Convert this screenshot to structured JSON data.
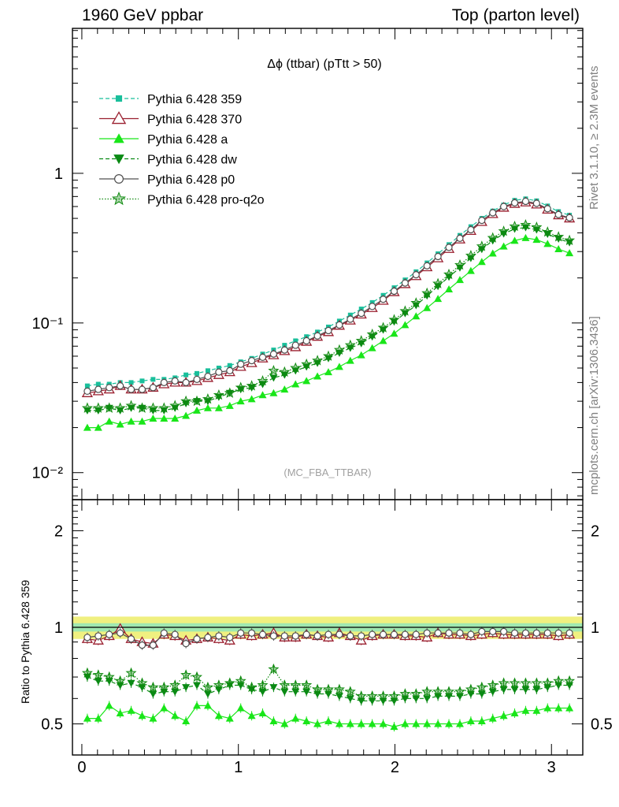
{
  "header": {
    "left": "1960 GeV ppbar",
    "right": "Top (parton level)"
  },
  "side": {
    "rivet": "Rivet 3.1.10, ≥ 2.3M events",
    "mcplots": "mcplots.cern.ch [arXiv:1306.3436]"
  },
  "colors": {
    "p359": "#19bf9b",
    "p370": "#9a1f2f",
    "a": "#19e619",
    "dw": "#0a8a14",
    "p0": "#505050",
    "proq2o": "#0f8a0f",
    "band_outer": "#f0f080",
    "band_inner": "#a0e8b0"
  },
  "chart_data": [
    {
      "type": "line",
      "title": "Δϕ (ttbar) (pTtt > 50)",
      "watermark": "(MC_FBA_TTBAR)",
      "yscale": "log",
      "xlim": [
        -0.06,
        3.2
      ],
      "ylim": [
        0.0066,
        9.3
      ],
      "y_tick_labels": [
        "10⁻²",
        "10⁻¹",
        "1"
      ],
      "y_ticks": [
        0.01,
        0.1,
        1
      ],
      "legend": {
        "placement": "top-left",
        "entries": [
          "Pythia 6.428 359",
          "Pythia 6.428 370",
          "Pythia 6.428 a",
          "Pythia 6.428 dw",
          "Pythia 6.428 p0",
          "Pythia 6.428 pro-q2o"
        ]
      },
      "x": [
        0.035,
        0.105,
        0.175,
        0.245,
        0.315,
        0.385,
        0.455,
        0.525,
        0.595,
        0.665,
        0.735,
        0.805,
        0.875,
        0.945,
        1.015,
        1.085,
        1.155,
        1.225,
        1.295,
        1.365,
        1.435,
        1.505,
        1.575,
        1.645,
        1.715,
        1.785,
        1.855,
        1.925,
        1.995,
        2.065,
        2.135,
        2.205,
        2.275,
        2.345,
        2.415,
        2.485,
        2.555,
        2.625,
        2.695,
        2.765,
        2.835,
        2.905,
        2.975,
        3.045,
        3.115
      ],
      "series": [
        {
          "name": "Pythia 6.428 359",
          "marker": "square",
          "line": "dashed",
          "values": [
            0.038,
            0.039,
            0.039,
            0.04,
            0.04,
            0.041,
            0.042,
            0.042,
            0.043,
            0.045,
            0.046,
            0.048,
            0.05,
            0.052,
            0.055,
            0.058,
            0.062,
            0.066,
            0.071,
            0.076,
            0.081,
            0.087,
            0.094,
            0.103,
            0.113,
            0.124,
            0.137,
            0.153,
            0.172,
            0.194,
            0.22,
            0.252,
            0.29,
            0.334,
            0.385,
            0.44,
            0.5,
            0.56,
            0.615,
            0.66,
            0.675,
            0.655,
            0.605,
            0.555,
            0.525
          ]
        },
        {
          "name": "Pythia 6.428 370",
          "marker": "open-triangle",
          "line": "solid",
          "values": [
            0.034,
            0.035,
            0.036,
            0.038,
            0.036,
            0.036,
            0.037,
            0.039,
            0.04,
            0.04,
            0.041,
            0.043,
            0.045,
            0.047,
            0.051,
            0.054,
            0.058,
            0.061,
            0.065,
            0.069,
            0.075,
            0.081,
            0.087,
            0.096,
            0.104,
            0.114,
            0.126,
            0.141,
            0.161,
            0.182,
            0.206,
            0.236,
            0.271,
            0.313,
            0.362,
            0.413,
            0.474,
            0.535,
            0.59,
            0.626,
            0.64,
            0.62,
            0.573,
            0.525,
            0.5
          ]
        },
        {
          "name": "Pythia 6.428 a",
          "marker": "filled-triangle",
          "line": "solid",
          "values": [
            0.02,
            0.02,
            0.022,
            0.021,
            0.022,
            0.022,
            0.023,
            0.023,
            0.023,
            0.024,
            0.026,
            0.027,
            0.027,
            0.028,
            0.03,
            0.031,
            0.033,
            0.034,
            0.036,
            0.039,
            0.041,
            0.044,
            0.047,
            0.051,
            0.056,
            0.061,
            0.068,
            0.076,
            0.085,
            0.097,
            0.111,
            0.126,
            0.145,
            0.168,
            0.194,
            0.223,
            0.256,
            0.292,
            0.325,
            0.355,
            0.37,
            0.36,
            0.338,
            0.312,
            0.293
          ]
        },
        {
          "name": "Pythia 6.428 dw",
          "marker": "filled-triangle-down",
          "line": "dashed",
          "values": [
            0.026,
            0.026,
            0.027,
            0.026,
            0.027,
            0.027,
            0.026,
            0.026,
            0.027,
            0.029,
            0.03,
            0.03,
            0.032,
            0.034,
            0.036,
            0.037,
            0.039,
            0.043,
            0.045,
            0.048,
            0.051,
            0.054,
            0.058,
            0.063,
            0.068,
            0.073,
            0.081,
            0.09,
            0.102,
            0.116,
            0.131,
            0.152,
            0.176,
            0.203,
            0.234,
            0.271,
            0.311,
            0.355,
            0.395,
            0.425,
            0.435,
            0.42,
            0.393,
            0.365,
            0.345
          ]
        },
        {
          "name": "Pythia 6.428 p0",
          "marker": "open-circle",
          "line": "solid",
          "values": [
            0.035,
            0.036,
            0.037,
            0.038,
            0.036,
            0.036,
            0.037,
            0.04,
            0.041,
            0.04,
            0.042,
            0.044,
            0.047,
            0.048,
            0.053,
            0.056,
            0.059,
            0.062,
            0.066,
            0.071,
            0.076,
            0.082,
            0.089,
            0.097,
            0.106,
            0.116,
            0.129,
            0.144,
            0.163,
            0.185,
            0.21,
            0.241,
            0.278,
            0.32,
            0.368,
            0.42,
            0.485,
            0.545,
            0.6,
            0.635,
            0.65,
            0.63,
            0.58,
            0.53,
            0.505
          ]
        },
        {
          "name": "Pythia 6.428 pro-q2o",
          "marker": "open-star",
          "line": "dotted",
          "values": [
            0.027,
            0.027,
            0.027,
            0.027,
            0.028,
            0.027,
            0.027,
            0.027,
            0.028,
            0.03,
            0.03,
            0.031,
            0.033,
            0.034,
            0.037,
            0.038,
            0.041,
            0.048,
            0.047,
            0.05,
            0.053,
            0.056,
            0.06,
            0.066,
            0.071,
            0.076,
            0.084,
            0.093,
            0.105,
            0.12,
            0.136,
            0.158,
            0.183,
            0.211,
            0.244,
            0.282,
            0.325,
            0.37,
            0.41,
            0.442,
            0.452,
            0.436,
            0.405,
            0.376,
            0.356
          ]
        }
      ]
    },
    {
      "type": "line",
      "ylabel": "Ratio to Pythia 6.428 359",
      "yscale": "log",
      "xlim": [
        -0.06,
        3.2
      ],
      "ylim": [
        0.4,
        2.5
      ],
      "x_ticks": [
        0,
        1,
        2,
        3
      ],
      "x_tick_labels": [
        "0",
        "1",
        "2",
        "3"
      ],
      "y_ticks": [
        0.5,
        1,
        2
      ],
      "y_tick_labels": [
        "0.5",
        "1",
        "2"
      ],
      "reference_band": {
        "outer": [
          0.92,
          1.08
        ],
        "inner": [
          0.97,
          1.03
        ]
      },
      "x": [
        0.035,
        0.105,
        0.175,
        0.245,
        0.315,
        0.385,
        0.455,
        0.525,
        0.595,
        0.665,
        0.735,
        0.805,
        0.875,
        0.945,
        1.015,
        1.085,
        1.155,
        1.225,
        1.295,
        1.365,
        1.435,
        1.505,
        1.575,
        1.645,
        1.715,
        1.785,
        1.855,
        1.925,
        1.995,
        2.065,
        2.135,
        2.205,
        2.275,
        2.345,
        2.415,
        2.485,
        2.555,
        2.625,
        2.695,
        2.765,
        2.835,
        2.905,
        2.975,
        3.045,
        3.115
      ],
      "series": [
        {
          "name": "Pythia 6.428 370",
          "values": [
            0.92,
            0.91,
            0.94,
            0.99,
            0.92,
            0.9,
            0.89,
            0.95,
            0.94,
            0.91,
            0.92,
            0.93,
            0.92,
            0.91,
            0.95,
            0.94,
            0.95,
            0.96,
            0.93,
            0.93,
            0.95,
            0.94,
            0.93,
            0.96,
            0.94,
            0.91,
            0.94,
            0.95,
            0.95,
            0.94,
            0.94,
            0.93,
            0.96,
            0.95,
            0.95,
            0.94,
            0.95,
            0.96,
            0.95,
            0.95,
            0.95,
            0.95,
            0.95,
            0.94,
            0.95
          ]
        },
        {
          "name": "Pythia 6.428 a",
          "values": [
            0.52,
            0.52,
            0.57,
            0.54,
            0.55,
            0.53,
            0.52,
            0.56,
            0.53,
            0.51,
            0.57,
            0.57,
            0.53,
            0.52,
            0.56,
            0.53,
            0.54,
            0.51,
            0.5,
            0.52,
            0.51,
            0.5,
            0.51,
            0.5,
            0.5,
            0.5,
            0.5,
            0.5,
            0.49,
            0.5,
            0.5,
            0.5,
            0.5,
            0.5,
            0.5,
            0.51,
            0.51,
            0.52,
            0.53,
            0.54,
            0.55,
            0.55,
            0.56,
            0.56,
            0.56
          ]
        },
        {
          "name": "Pythia 6.428 dw",
          "values": [
            0.7,
            0.68,
            0.68,
            0.66,
            0.67,
            0.65,
            0.62,
            0.63,
            0.63,
            0.65,
            0.66,
            0.62,
            0.64,
            0.66,
            0.66,
            0.64,
            0.63,
            0.65,
            0.63,
            0.63,
            0.63,
            0.62,
            0.62,
            0.61,
            0.6,
            0.59,
            0.59,
            0.59,
            0.59,
            0.6,
            0.6,
            0.6,
            0.61,
            0.61,
            0.61,
            0.62,
            0.62,
            0.63,
            0.64,
            0.64,
            0.64,
            0.64,
            0.65,
            0.66,
            0.66
          ]
        },
        {
          "name": "Pythia 6.428 p0",
          "values": [
            0.93,
            0.94,
            0.95,
            0.96,
            0.92,
            0.88,
            0.88,
            0.96,
            0.95,
            0.89,
            0.92,
            0.93,
            0.94,
            0.93,
            0.96,
            0.96,
            0.95,
            0.94,
            0.94,
            0.94,
            0.95,
            0.94,
            0.95,
            0.95,
            0.94,
            0.94,
            0.95,
            0.95,
            0.95,
            0.95,
            0.95,
            0.96,
            0.96,
            0.96,
            0.96,
            0.95,
            0.97,
            0.97,
            0.97,
            0.96,
            0.96,
            0.96,
            0.96,
            0.96,
            0.96
          ]
        },
        {
          "name": "Pythia 6.428 pro-q2o",
          "values": [
            0.72,
            0.71,
            0.7,
            0.68,
            0.72,
            0.67,
            0.65,
            0.65,
            0.66,
            0.71,
            0.7,
            0.65,
            0.66,
            0.67,
            0.68,
            0.65,
            0.66,
            0.74,
            0.66,
            0.66,
            0.66,
            0.64,
            0.64,
            0.64,
            0.63,
            0.61,
            0.61,
            0.61,
            0.61,
            0.62,
            0.62,
            0.63,
            0.63,
            0.63,
            0.63,
            0.64,
            0.65,
            0.66,
            0.67,
            0.67,
            0.67,
            0.67,
            0.67,
            0.68,
            0.68
          ]
        }
      ]
    }
  ]
}
